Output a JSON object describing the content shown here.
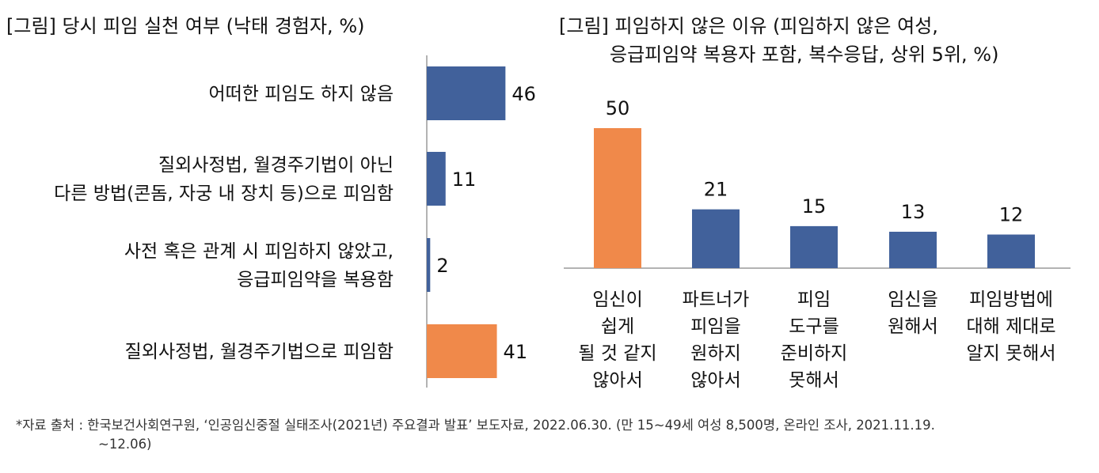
{
  "colors": {
    "blue": "#41619b",
    "orange": "#f0894a",
    "axis": "#9a9a9a",
    "text": "#111111"
  },
  "chart_data": [
    {
      "type": "bar",
      "orientation": "horizontal",
      "title": "[그림] 당시 피임 실천 여부 (낙태 경험자, %)",
      "categories": [
        [
          "어떠한 피임도 하지 않음"
        ],
        [
          "질외사정법, 월경주기법이 아닌",
          "다른 방법(콘돔, 자궁 내 장치 등)으로 피임함"
        ],
        [
          "사전 혹은 관계 시 피임하지 않았고,",
          "응급피임약을 복용함"
        ],
        [
          "질외사정법, 월경주기법으로 피임함"
        ]
      ],
      "values": [
        46,
        11,
        2,
        41
      ],
      "highlight": [
        false,
        false,
        false,
        true
      ],
      "xlim": [
        0,
        100
      ]
    },
    {
      "type": "bar",
      "orientation": "vertical",
      "title_lines": [
        "[그림] 피임하지 않은 이유 (피임하지 않은 여성,",
        "응급피임약 복용자 포함, 복수응답, 상위 5위, %)"
      ],
      "categories": [
        [
          "임신이",
          "쉽게",
          "될 것 같지",
          "않아서"
        ],
        [
          "파트너가",
          "피임을",
          "원하지",
          "않아서"
        ],
        [
          "피임",
          "도구를",
          "준비하지",
          "못해서"
        ],
        [
          "임신을",
          "원해서"
        ],
        [
          "피임방법에",
          "대해 제대로",
          "알지 못해서"
        ]
      ],
      "values": [
        50,
        21,
        15,
        13,
        12
      ],
      "highlight": [
        true,
        false,
        false,
        false,
        false
      ],
      "ylim": [
        0,
        100
      ]
    }
  ],
  "source": {
    "line1": "*자료 출처 : 한국보건사회연구원, ‘인공임신중절 실태조사(2021년) 주요결과 발표’ 보도자료, 2022.06.30. (만 15~49세 여성 8,500명, 온라인 조사, 2021.11.19.",
    "line2": "~12.06)"
  }
}
